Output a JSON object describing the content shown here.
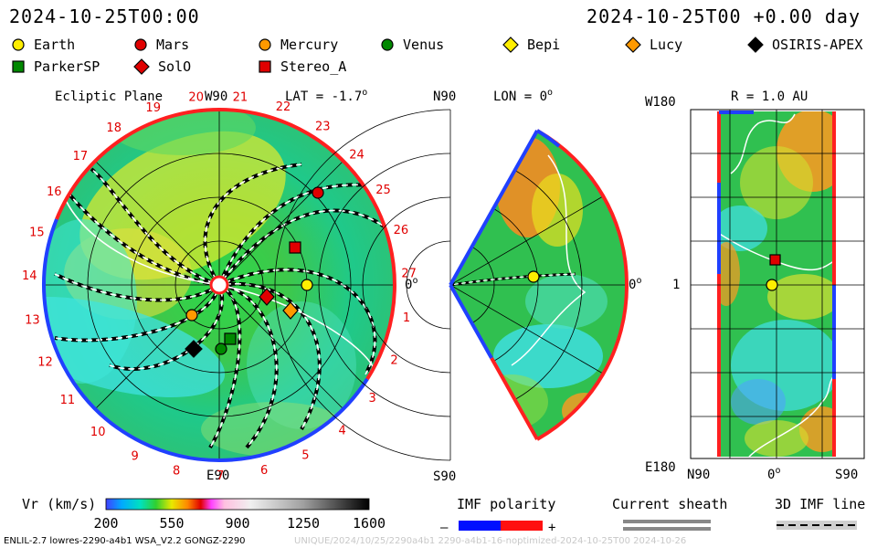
{
  "header": {
    "left_time": "2024-10-25T00:00",
    "right_time": "2024-10-25T00 +0.00 day"
  },
  "legend": {
    "row1": [
      {
        "label": "Earth",
        "color": "#ffee00",
        "shape": "circle"
      },
      {
        "label": "Mars",
        "color": "#e00000",
        "shape": "circle"
      },
      {
        "label": "Mercury",
        "color": "#ff9900",
        "shape": "circle"
      },
      {
        "label": "Venus",
        "color": "#008800",
        "shape": "circle"
      },
      {
        "label": "Bepi",
        "color": "#ffee00",
        "shape": "diamond"
      },
      {
        "label": "Lucy",
        "color": "#ff9900",
        "shape": "diamond"
      },
      {
        "label": "OSIRIS-APEX",
        "color": "#000000",
        "shape": "diamond"
      }
    ],
    "row2": [
      {
        "label": "ParkerSP",
        "color": "#008800",
        "shape": "square"
      },
      {
        "label": "SolO",
        "color": "#e00000",
        "shape": "diamond"
      },
      {
        "label": "Stereo_A",
        "color": "#e00000",
        "shape": "square"
      }
    ]
  },
  "panels": {
    "ecliptic": {
      "title": "Ecliptic Plane",
      "lat": "LAT = -1.7",
      "lat_sup": "o",
      "top_label": "W90",
      "bottom_label": "E90",
      "right_label": "0",
      "right_sup": "o"
    },
    "meridional": {
      "top_left": "N90",
      "bottom_left": "S90",
      "lon": "LON = 0",
      "lon_sup": "o",
      "right_label": "0",
      "right_sup": "o"
    },
    "sphere": {
      "title": "R = 1.0 AU",
      "left_top": "W180",
      "left_mid": "1",
      "left_bottom": "E180",
      "x_left": "N90",
      "x_mid": "0",
      "x_mid_sup": "o",
      "x_right": "S90"
    }
  },
  "bottom": {
    "vr_label": "Vr (km/s)",
    "imf_label": "IMF polarity",
    "imf_minus": "–",
    "imf_plus": "+",
    "sheath_label": "Current sheath",
    "imf3d_label": "3D IMF line",
    "footer_left": "ENLIL-2.7 lowres-2290-a4b1 WSA_V2.2 GONGZ-2290",
    "footer_right": "UNIQUE/2024/10/25/2290a4b1 2290-a4b1-16-noptimized-2024-10-25T00    2024-10-26"
  },
  "chart_data": {
    "type": "heatmap",
    "colorbar": {
      "label": "Vr (km/s)",
      "ticks": [
        200,
        550,
        900,
        1250,
        1600
      ],
      "range": [
        200,
        1600
      ]
    },
    "carrington_ticks": [
      "20",
      "21",
      "22",
      "23",
      "24",
      "25",
      "26",
      "27",
      "1",
      "2",
      "3",
      "4",
      "5",
      "6",
      "7",
      "8",
      "9",
      "10",
      "11",
      "12",
      "13",
      "14",
      "15",
      "16",
      "17",
      "18",
      "19"
    ]
  }
}
